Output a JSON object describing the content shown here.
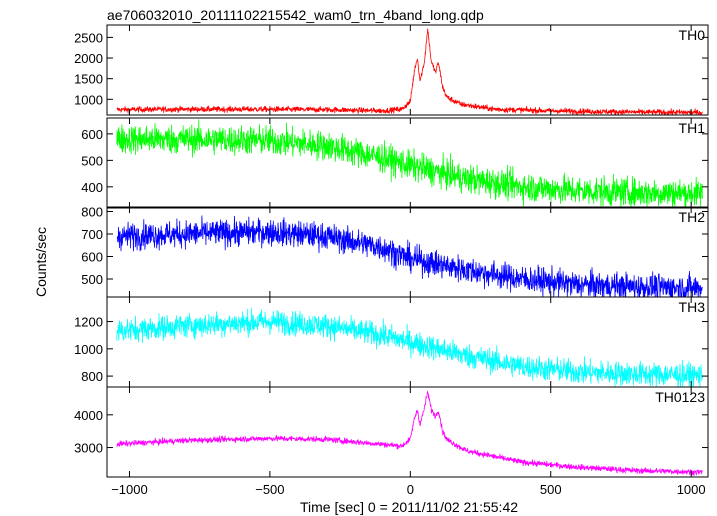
{
  "chart_data": {
    "type": "line",
    "title": "ae706032010_20111102215542_wam0_trn_4band_long.qdp",
    "xlabel": "Time [sec] 0 = 2011/11/02 21:55:42",
    "ylabel": "Counts/sec",
    "xlim": [
      -1080,
      1060
    ],
    "x_ticks": [
      -1000,
      -500,
      0,
      500,
      1000
    ],
    "x_tick_labels": [
      "−1000",
      "−500",
      "0",
      "500",
      "1000"
    ],
    "panels": [
      {
        "name": "TH0",
        "color": "#ff0000",
        "ylim": [
          620,
          2800
        ],
        "y_ticks": [
          1000,
          1500,
          2000,
          2500
        ],
        "noise": 35,
        "profile": [
          [
            -1050,
            750
          ],
          [
            -800,
            760
          ],
          [
            -500,
            760
          ],
          [
            -300,
            750
          ],
          [
            -100,
            720
          ],
          [
            -30,
            760
          ],
          [
            0,
            950
          ],
          [
            15,
            1700
          ],
          [
            25,
            2000
          ],
          [
            35,
            1450
          ],
          [
            50,
            1900
          ],
          [
            62,
            2700
          ],
          [
            75,
            1900
          ],
          [
            90,
            1650
          ],
          [
            100,
            1900
          ],
          [
            115,
            1300
          ],
          [
            130,
            1050
          ],
          [
            180,
            880
          ],
          [
            300,
            760
          ],
          [
            500,
            720
          ],
          [
            800,
            690
          ],
          [
            1040,
            680
          ]
        ]
      },
      {
        "name": "TH1",
        "color": "#00ff00",
        "ylim": [
          320,
          660
        ],
        "y_ticks": [
          400,
          500,
          600
        ],
        "noise": 28,
        "profile": [
          [
            -1050,
            580
          ],
          [
            -800,
            580
          ],
          [
            -500,
            575
          ],
          [
            -300,
            555
          ],
          [
            -100,
            510
          ],
          [
            0,
            480
          ],
          [
            200,
            430
          ],
          [
            400,
            400
          ],
          [
            600,
            385
          ],
          [
            800,
            378
          ],
          [
            1040,
            375
          ]
        ]
      },
      {
        "name": "TH2",
        "color": "#0000ff",
        "ylim": [
          420,
          820
        ],
        "y_ticks": [
          500,
          600,
          700,
          800
        ],
        "noise": 30,
        "profile": [
          [
            -1050,
            690
          ],
          [
            -800,
            700
          ],
          [
            -500,
            710
          ],
          [
            -300,
            690
          ],
          [
            -100,
            640
          ],
          [
            0,
            590
          ],
          [
            200,
            540
          ],
          [
            400,
            500
          ],
          [
            600,
            475
          ],
          [
            800,
            465
          ],
          [
            1040,
            460
          ]
        ]
      },
      {
        "name": "TH3",
        "color": "#00ffff",
        "ylim": [
          720,
          1380
        ],
        "y_ticks": [
          800,
          1000,
          1200
        ],
        "noise": 45,
        "profile": [
          [
            -1050,
            1130
          ],
          [
            -800,
            1170
          ],
          [
            -500,
            1200
          ],
          [
            -300,
            1170
          ],
          [
            -100,
            1100
          ],
          [
            0,
            1050
          ],
          [
            200,
            950
          ],
          [
            400,
            870
          ],
          [
            600,
            830
          ],
          [
            800,
            815
          ],
          [
            1040,
            805
          ]
        ]
      },
      {
        "name": "TH0123",
        "color": "#ff00ff",
        "ylim": [
          2100,
          4850
        ],
        "y_ticks": [
          3000,
          4000
        ],
        "noise": 45,
        "profile": [
          [
            -1050,
            3100
          ],
          [
            -800,
            3220
          ],
          [
            -500,
            3280
          ],
          [
            -300,
            3250
          ],
          [
            -100,
            3100
          ],
          [
            -30,
            3050
          ],
          [
            0,
            3250
          ],
          [
            15,
            3900
          ],
          [
            25,
            4150
          ],
          [
            35,
            3700
          ],
          [
            50,
            4200
          ],
          [
            62,
            4700
          ],
          [
            75,
            4150
          ],
          [
            90,
            3950
          ],
          [
            100,
            4150
          ],
          [
            115,
            3500
          ],
          [
            130,
            3250
          ],
          [
            200,
            2900
          ],
          [
            400,
            2550
          ],
          [
            600,
            2400
          ],
          [
            800,
            2300
          ],
          [
            1040,
            2250
          ]
        ]
      }
    ]
  }
}
